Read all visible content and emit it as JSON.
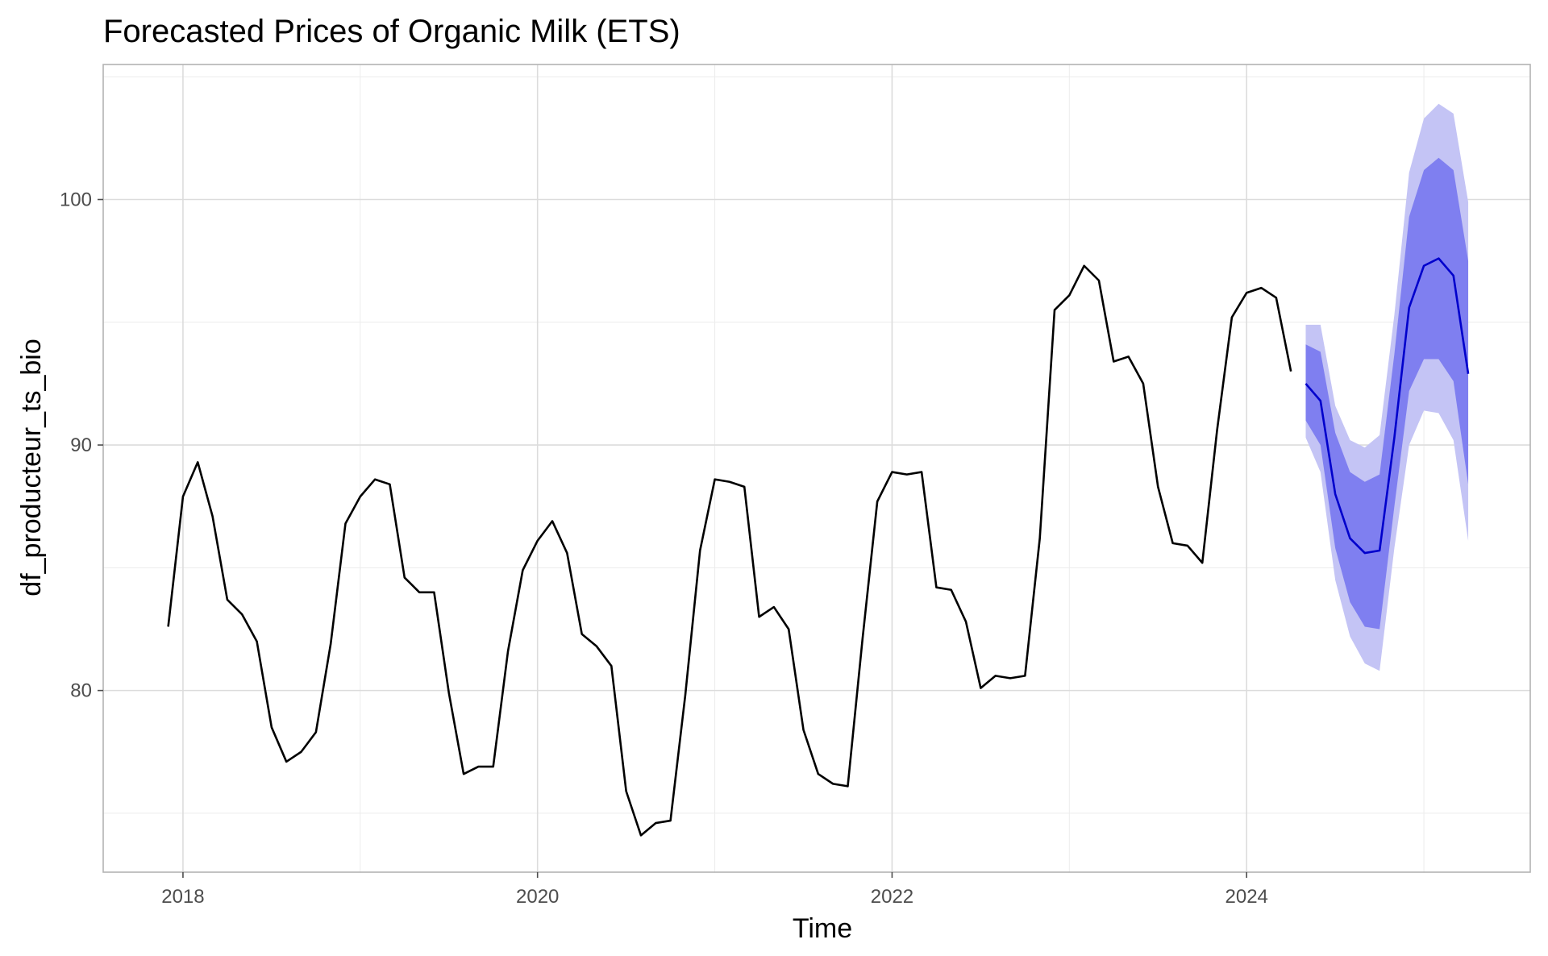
{
  "chart_data": {
    "type": "line",
    "title": "Forecasted Prices of Organic Milk (ETS)",
    "xlabel": "Time",
    "ylabel": "df_producteur_ts_bio",
    "xlim": [
      2017.55,
      2025.6
    ],
    "ylim": [
      72.6,
      105.5
    ],
    "x_ticks": [
      2018,
      2020,
      2022,
      2024
    ],
    "x_tick_labels": [
      "2018",
      "2020",
      "2022",
      "2024"
    ],
    "y_ticks": [
      80,
      90,
      100
    ],
    "y_tick_labels": [
      "80",
      "90",
      "100"
    ],
    "grid": true,
    "legend": "none",
    "colors": {
      "history": "#000000",
      "forecast": "#0000cc",
      "ci80": "#7f7ff0",
      "ci95": "#c4c4f5"
    },
    "series": [
      {
        "role": "history",
        "start": [
          2017,
          12
        ],
        "frequency": 12,
        "values": [
          82.6,
          87.9,
          89.3,
          87.1,
          83.7,
          83.1,
          82.0,
          78.5,
          77.1,
          77.5,
          78.3,
          81.9,
          86.8,
          87.9,
          88.6,
          88.4,
          84.6,
          84.0,
          84.0,
          79.9,
          76.6,
          76.9,
          76.9,
          81.6,
          84.9,
          86.1,
          86.9,
          85.6,
          82.3,
          81.8,
          81.0,
          75.9,
          74.1,
          74.6,
          74.7,
          79.8,
          85.7,
          88.6,
          88.5,
          88.3,
          83.0,
          83.4,
          82.5,
          78.4,
          76.6,
          76.2,
          76.1,
          82.1,
          87.7,
          88.9,
          88.8,
          88.9,
          84.2,
          84.1,
          82.8,
          80.1,
          80.6,
          80.5,
          80.6,
          86.2,
          95.5,
          96.1,
          97.3,
          96.7,
          93.4,
          93.6,
          92.5,
          88.3,
          86.0,
          85.9,
          85.2,
          90.6,
          95.2,
          96.2,
          96.4,
          96.0,
          93.0
        ]
      },
      {
        "role": "forecast",
        "start": [
          2024,
          5
        ],
        "frequency": 12,
        "values": [
          92.5,
          91.8,
          88.0,
          86.2,
          85.6,
          85.7,
          90.3,
          95.6,
          97.3,
          97.6,
          96.9,
          92.9
        ],
        "lo80": [
          91.0,
          90.0,
          85.8,
          83.6,
          82.6,
          82.5,
          87.5,
          92.2,
          93.5,
          93.5,
          92.6,
          88.4
        ],
        "hi80": [
          94.1,
          93.8,
          90.5,
          88.9,
          88.5,
          88.8,
          93.7,
          99.3,
          101.2,
          101.7,
          101.2,
          97.5
        ],
        "lo95": [
          90.3,
          88.9,
          84.5,
          82.2,
          81.1,
          80.8,
          85.8,
          90.0,
          91.4,
          91.3,
          90.2,
          86.1
        ],
        "hi95": [
          94.9,
          94.9,
          91.6,
          90.2,
          89.9,
          90.4,
          95.3,
          101.1,
          103.3,
          103.9,
          103.5,
          99.9
        ]
      }
    ]
  }
}
